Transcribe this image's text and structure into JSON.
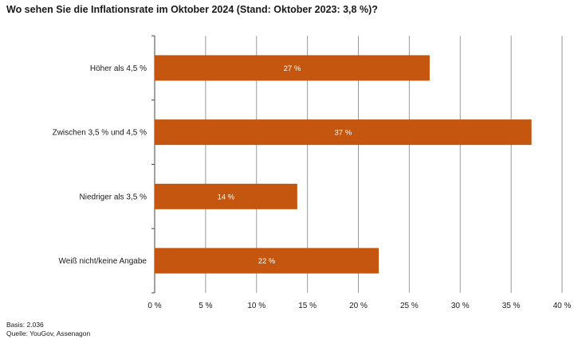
{
  "chart_data": {
    "type": "bar",
    "orientation": "horizontal",
    "title": "Wo sehen Sie die Inflationsrate im Oktober 2024 (Stand: Oktober 2023: 3,8 %)?",
    "categories": [
      "Höher als 4,5 %",
      "Zwischen 3,5 % und 4,5 %",
      "Niedriger als 3,5 %",
      "Weiß nicht/keine Angabe"
    ],
    "values": [
      27,
      37,
      14,
      22
    ],
    "value_labels": [
      "27 %",
      "37 %",
      "14 %",
      "22 %"
    ],
    "xlim": [
      0,
      40
    ],
    "xticks": [
      0,
      5,
      10,
      15,
      20,
      25,
      30,
      35,
      40
    ],
    "xtick_labels": [
      "0 %",
      "5 %",
      "10 %",
      "15 %",
      "20 %",
      "25 %",
      "30 %",
      "35 %",
      "40 %"
    ],
    "bar_color": "#c5560f",
    "grid": "vertical"
  },
  "footer": {
    "basis": "Basis: 2.036",
    "source": "Quelle: YouGov, Assenagon"
  }
}
